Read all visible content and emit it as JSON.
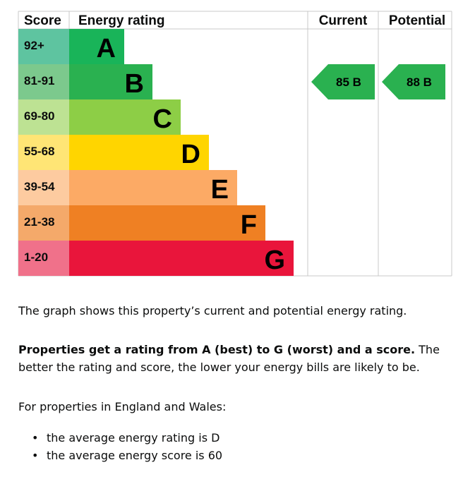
{
  "chart_data": {
    "type": "table",
    "headers": {
      "score": "Score",
      "energy_rating": "Energy rating",
      "current": "Current",
      "potential": "Potential"
    },
    "bands": [
      {
        "letter": "A",
        "range": "92+",
        "color": "#19b459",
        "score_color": "#5ec4a0"
      },
      {
        "letter": "B",
        "range": "81-91",
        "color": "#2ab150",
        "score_color": "#7cc98d"
      },
      {
        "letter": "C",
        "range": "69-80",
        "color": "#8dce46",
        "score_color": "#bde293"
      },
      {
        "letter": "D",
        "range": "55-68",
        "color": "#ffd500",
        "score_color": "#ffe575"
      },
      {
        "letter": "E",
        "range": "39-54",
        "color": "#fcaa65",
        "score_color": "#fdcba0"
      },
      {
        "letter": "F",
        "range": "21-38",
        "color": "#ef8023",
        "score_color": "#f4a96a"
      },
      {
        "letter": "G",
        "range": "1-20",
        "color": "#e9153b",
        "score_color": "#f0718a"
      }
    ],
    "current": {
      "score": 85,
      "band": "B",
      "label": "85  B",
      "color": "#2ab150"
    },
    "potential": {
      "score": 88,
      "band": "B",
      "label": "88  B",
      "color": "#2ab150"
    }
  },
  "text": {
    "intro": "The graph shows this property’s current and potential energy rating.",
    "rating_bold": "Properties get a rating from A (best) to G (worst) and a score.",
    "rating_rest": " The better the rating and score, the lower your energy bills are likely to be.",
    "england_wales": "For properties in England and Wales:",
    "average_rating": "the average energy rating is D",
    "average_score": "the average energy score is 60"
  }
}
